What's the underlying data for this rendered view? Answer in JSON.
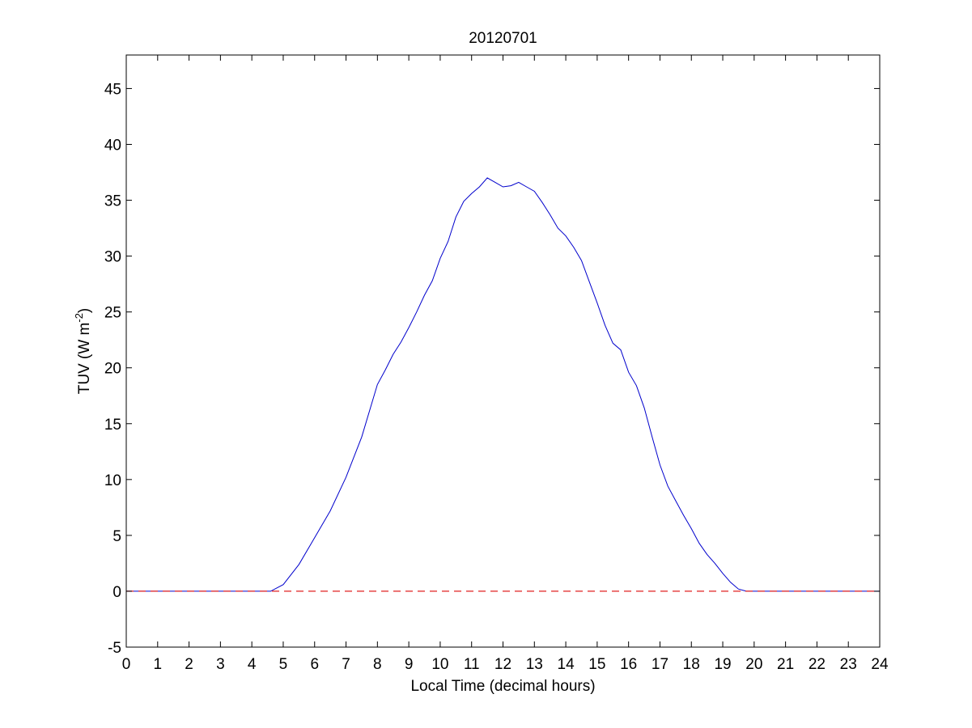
{
  "chart_data": {
    "type": "line",
    "title": "20120701",
    "xlabel": "Local Time (decimal hours)",
    "ylabel": "TUV (W m",
    "ylabel_sup": "-2",
    "ylabel_close": ")",
    "xlim": [
      0,
      24
    ],
    "ylim": [
      -5,
      48
    ],
    "xticks": [
      0,
      1,
      2,
      3,
      4,
      5,
      6,
      7,
      8,
      9,
      10,
      11,
      12,
      13,
      14,
      15,
      16,
      17,
      18,
      19,
      20,
      21,
      22,
      23,
      24
    ],
    "yticks": [
      -5,
      0,
      5,
      10,
      15,
      20,
      25,
      30,
      35,
      40,
      45
    ],
    "grid": false,
    "series": [
      {
        "color": "#0000cc",
        "style": "solid",
        "x": [
          0,
          4.6,
          5.0,
          5.5,
          6.0,
          6.5,
          7.0,
          7.5,
          8.0,
          8.25,
          8.5,
          8.75,
          9.0,
          9.25,
          9.5,
          9.75,
          10.0,
          10.25,
          10.5,
          10.75,
          11.0,
          11.25,
          11.5,
          11.75,
          12.0,
          12.25,
          12.5,
          12.75,
          13.0,
          13.25,
          13.5,
          13.75,
          14.0,
          14.25,
          14.5,
          14.75,
          15.0,
          15.25,
          15.5,
          15.75,
          16.0,
          16.25,
          16.5,
          16.75,
          17.0,
          17.25,
          17.5,
          17.75,
          18.0,
          18.25,
          18.5,
          18.75,
          19.0,
          19.25,
          19.5,
          19.75,
          20.0,
          24.0
        ],
        "y": [
          0,
          0,
          0.6,
          2.4,
          4.8,
          7.2,
          10.2,
          13.8,
          18.5,
          19.8,
          21.2,
          22.3,
          23.6,
          25.0,
          26.5,
          27.8,
          29.8,
          31.3,
          33.5,
          34.9,
          35.6,
          36.2,
          37.0,
          36.6,
          36.2,
          36.3,
          36.6,
          36.2,
          35.8,
          34.8,
          33.7,
          32.5,
          31.8,
          30.8,
          29.6,
          27.7,
          25.8,
          23.8,
          22.2,
          21.6,
          19.6,
          18.4,
          16.4,
          13.8,
          11.3,
          9.4,
          8.1,
          6.8,
          5.6,
          4.3,
          3.3,
          2.5,
          1.6,
          0.8,
          0.2,
          0,
          0,
          0
        ]
      },
      {
        "color": "#e02020",
        "style": "dashed",
        "x": [
          0,
          24
        ],
        "y": [
          0,
          0
        ]
      }
    ]
  }
}
